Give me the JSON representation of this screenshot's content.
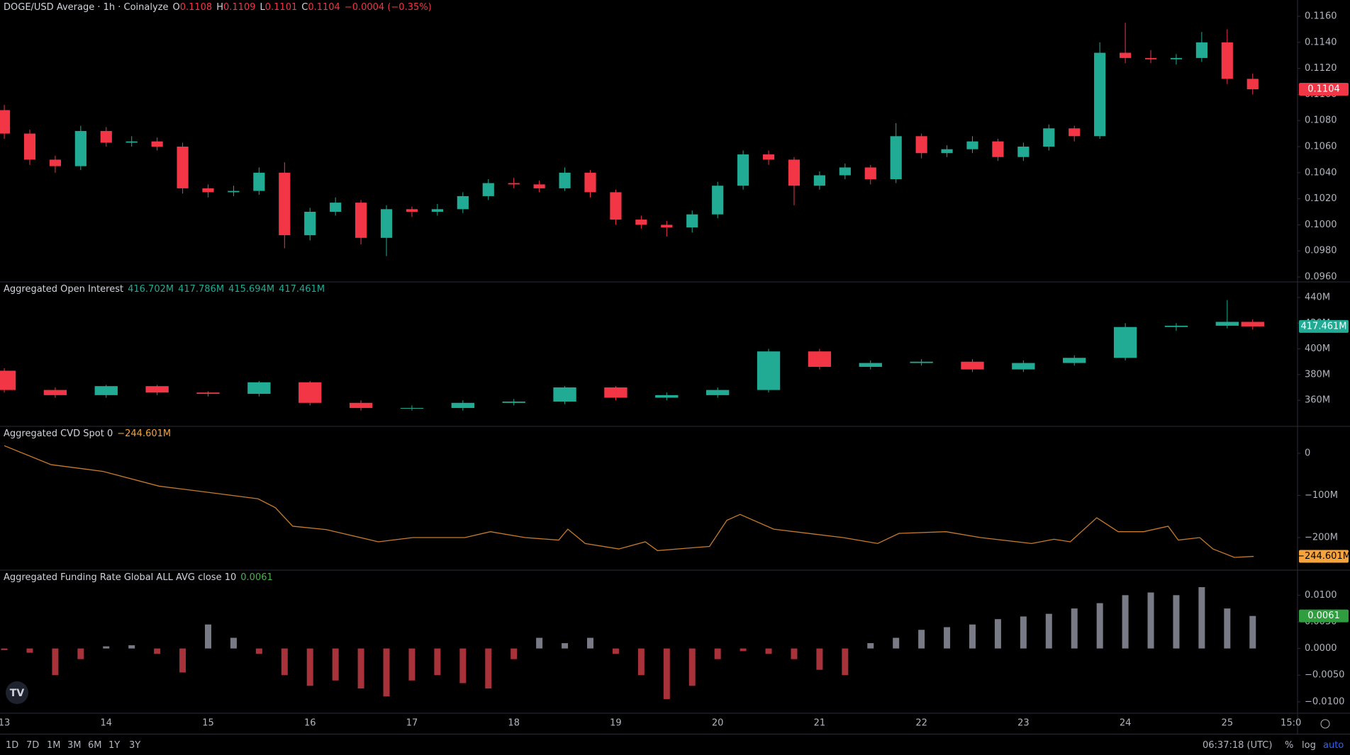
{
  "time_axis": {
    "xlim": [
      12.958,
      25.69
    ],
    "xticks": [
      {
        "value": 13,
        "label": "13"
      },
      {
        "value": 14,
        "label": "14"
      },
      {
        "value": 15,
        "label": "15"
      },
      {
        "value": 16,
        "label": "16"
      },
      {
        "value": 17,
        "label": "17"
      },
      {
        "value": 18,
        "label": "18"
      },
      {
        "value": 19,
        "label": "19"
      },
      {
        "value": 20,
        "label": "20"
      },
      {
        "value": 21,
        "label": "21"
      },
      {
        "value": 22,
        "label": "22"
      },
      {
        "value": 23,
        "label": "23"
      },
      {
        "value": 24,
        "label": "24"
      },
      {
        "value": 25,
        "label": "25"
      },
      {
        "value": 25.625,
        "label": "15:0"
      }
    ]
  },
  "chart_data": [
    {
      "type": "candlestick",
      "title": "DOGE/USD Average · 1h · Coinalyze",
      "legend": [
        {
          "key": "O",
          "value": "0.1108"
        },
        {
          "key": "H",
          "value": "0.1109"
        },
        {
          "key": "L",
          "value": "0.1101"
        },
        {
          "key": "C",
          "value": "0.1104"
        }
      ],
      "change": "−0.0004 (−0.35%)",
      "up_color": "#22ab94",
      "down_color": "#f23645",
      "badge_color": "#f23645",
      "grid": false,
      "x": [
        13.0,
        13.25,
        13.5,
        13.75,
        14.0,
        14.25,
        14.5,
        14.75,
        15.0,
        15.25,
        15.5,
        15.75,
        16.0,
        16.25,
        16.5,
        16.75,
        17.0,
        17.25,
        17.5,
        17.75,
        18.0,
        18.25,
        18.5,
        18.75,
        19.0,
        19.25,
        19.5,
        19.75,
        20.0,
        20.25,
        20.5,
        20.75,
        21.0,
        21.25,
        21.5,
        21.75,
        22.0,
        22.25,
        22.5,
        22.75,
        23.0,
        23.25,
        23.5,
        23.75,
        24.0,
        24.25,
        24.5,
        24.75,
        25.0,
        25.25
      ],
      "open": [
        0.1088,
        0.107,
        0.105,
        0.1045,
        0.1072,
        0.1063,
        0.1064,
        0.106,
        0.1028,
        0.1025,
        0.1026,
        0.104,
        0.0992,
        0.101,
        0.1017,
        0.099,
        0.1012,
        0.101,
        0.1012,
        0.1022,
        0.1032,
        0.1031,
        0.1028,
        0.104,
        0.1025,
        0.1004,
        0.1,
        0.0998,
        0.1008,
        0.103,
        0.1054,
        0.105,
        0.103,
        0.1038,
        0.1044,
        0.1035,
        0.1068,
        0.1055,
        0.1058,
        0.1064,
        0.1052,
        0.106,
        0.1074,
        0.1068,
        0.1132,
        0.1128,
        0.1127,
        0.1128,
        0.114,
        0.1112
      ],
      "high": [
        0.1092,
        0.1073,
        0.1053,
        0.1076,
        0.1075,
        0.1068,
        0.1067,
        0.1063,
        0.1031,
        0.103,
        0.1044,
        0.1048,
        0.1013,
        0.1021,
        0.1019,
        0.1015,
        0.1014,
        0.1016,
        0.1025,
        0.1035,
        0.1036,
        0.1034,
        0.1044,
        0.1042,
        0.1027,
        0.1007,
        0.1003,
        0.1011,
        0.1033,
        0.1057,
        0.1057,
        0.1052,
        0.1041,
        0.1047,
        0.1046,
        0.1078,
        0.107,
        0.1061,
        0.1068,
        0.1066,
        0.1063,
        0.1077,
        0.1076,
        0.114,
        0.1155,
        0.1134,
        0.1131,
        0.1148,
        0.115,
        0.1116
      ],
      "low": [
        0.1066,
        0.1046,
        0.104,
        0.1042,
        0.106,
        0.106,
        0.1057,
        0.1024,
        0.1021,
        0.1022,
        0.1023,
        0.0982,
        0.0988,
        0.1007,
        0.0985,
        0.0976,
        0.1006,
        0.1007,
        0.1009,
        0.1019,
        0.1028,
        0.1025,
        0.1026,
        0.1021,
        0.1,
        0.0997,
        0.0991,
        0.0994,
        0.1005,
        0.1027,
        0.1046,
        0.1015,
        0.1027,
        0.1035,
        0.1031,
        0.1032,
        0.1051,
        0.1052,
        0.1055,
        0.1049,
        0.1049,
        0.1057,
        0.1064,
        0.1066,
        0.1124,
        0.1124,
        0.1123,
        0.1125,
        0.1108,
        0.11
      ],
      "close": [
        0.107,
        0.105,
        0.1045,
        0.1072,
        0.1063,
        0.1064,
        0.106,
        0.1028,
        0.1025,
        0.1026,
        0.104,
        0.0992,
        0.101,
        0.1017,
        0.099,
        0.1012,
        0.101,
        0.1012,
        0.1022,
        0.1032,
        0.1031,
        0.1028,
        0.104,
        0.1025,
        0.1004,
        0.1,
        0.0998,
        0.1008,
        0.103,
        0.1054,
        0.105,
        0.103,
        0.1038,
        0.1044,
        0.1035,
        0.1068,
        0.1055,
        0.1058,
        0.1064,
        0.1052,
        0.106,
        0.1074,
        0.1068,
        0.1132,
        0.1128,
        0.1127,
        0.1128,
        0.114,
        0.1112,
        0.1104
      ],
      "ylim": [
        0.09562,
        0.11725
      ],
      "yticks": [
        {
          "value": 0.096,
          "label": "0.0960"
        },
        {
          "value": 0.098,
          "label": "0.0980"
        },
        {
          "value": 0.1,
          "label": "0.1000"
        },
        {
          "value": 0.102,
          "label": "0.1020"
        },
        {
          "value": 0.104,
          "label": "0.1040"
        },
        {
          "value": 0.106,
          "label": "0.1060"
        },
        {
          "value": 0.108,
          "label": "0.1080"
        },
        {
          "value": 0.11,
          "label": "0.1100"
        },
        {
          "value": 0.112,
          "label": "0.1120"
        },
        {
          "value": 0.114,
          "label": "0.1140"
        },
        {
          "value": 0.116,
          "label": "0.1160"
        }
      ]
    },
    {
      "type": "candlestick",
      "title": "Aggregated Open Interest",
      "legend_values": [
        "416.702M",
        "417.786M",
        "415.694M",
        "417.461M"
      ],
      "up_color": "#22ab94",
      "down_color": "#f23645",
      "badge_color": "#22ab94",
      "grid": false,
      "x": [
        13.0,
        13.5,
        14.0,
        14.5,
        15.0,
        15.5,
        16.0,
        16.5,
        17.0,
        17.5,
        18.0,
        18.5,
        19.0,
        19.5,
        20.0,
        20.5,
        21.0,
        21.5,
        22.0,
        22.5,
        23.0,
        23.5,
        24.0,
        24.5,
        25.0,
        25.25
      ],
      "open": [
        383,
        368,
        364,
        371,
        366,
        365,
        374,
        358,
        354,
        354,
        358,
        359,
        370,
        362,
        364,
        368,
        398,
        386,
        389,
        390,
        384,
        389,
        393,
        417,
        418,
        421
      ],
      "high": [
        385,
        370,
        372,
        372,
        367,
        375,
        375,
        360,
        356,
        360,
        361,
        371,
        371,
        366,
        370,
        400,
        400,
        391,
        392,
        392,
        391,
        395,
        420,
        420,
        438,
        423
      ],
      "low": [
        366,
        362,
        362,
        364,
        363,
        363,
        356,
        352,
        352,
        352,
        356,
        357,
        360,
        360,
        362,
        366,
        384,
        384,
        387,
        382,
        382,
        387,
        391,
        414,
        416,
        415
      ],
      "close": [
        368,
        364,
        371,
        366,
        365,
        374,
        358,
        354,
        354,
        358,
        359,
        370,
        362,
        364,
        368,
        398,
        386,
        389,
        390,
        384,
        389,
        393,
        417,
        418,
        421,
        417.461
      ],
      "ylim": [
        339.7,
        452.1
      ],
      "yticks": [
        {
          "value": 360,
          "label": "360M"
        },
        {
          "value": 380,
          "label": "380M"
        },
        {
          "value": 400,
          "label": "400M"
        },
        {
          "value": 420,
          "label": "420M"
        },
        {
          "value": 440,
          "label": "440M"
        }
      ]
    },
    {
      "type": "line",
      "title": "Aggregated CVD Spot 0",
      "legend_value": "−244.601M",
      "color": "#c87b2a",
      "badge_color": "#f5a33a",
      "grid": false,
      "x": [
        13.0,
        13.46,
        13.97,
        14.52,
        14.98,
        15.49,
        15.66,
        15.83,
        16.16,
        16.67,
        17.01,
        17.52,
        17.77,
        18.11,
        18.44,
        18.53,
        18.7,
        19.03,
        19.29,
        19.41,
        19.71,
        19.92,
        20.09,
        20.22,
        20.55,
        20.89,
        21.23,
        21.57,
        21.78,
        22.24,
        22.58,
        23.08,
        23.3,
        23.46,
        23.72,
        23.93,
        24.18,
        24.42,
        24.52,
        24.73,
        24.86,
        25.07,
        25.26
      ],
      "values": [
        18,
        -27,
        -43,
        -78,
        -92,
        -108,
        -129,
        -173,
        -181,
        -210,
        -200,
        -200,
        -186,
        -200,
        -206,
        -180,
        -214,
        -227,
        -210,
        -231,
        -225,
        -221,
        -159,
        -145,
        -180,
        -190,
        -200,
        -214,
        -190,
        -186,
        -200,
        -214,
        -204,
        -210,
        -153,
        -186,
        -186,
        -173,
        -206,
        -200,
        -227,
        -247,
        -244.601
      ],
      "ylim": [
        -277.3,
        63.9
      ],
      "yticks": [
        {
          "value": -200,
          "label": "−200M"
        },
        {
          "value": -100,
          "label": "−100M"
        },
        0
      ]
    },
    {
      "type": "bar",
      "title": "Aggregated Funding Rate Global ALL AVG close 10",
      "legend_value": "0.0061",
      "positive_color": "#787b86",
      "negative_color": "#a8323a",
      "badge_color": "#2e9e3e",
      "grid": false,
      "x": [
        13.0,
        13.25,
        13.5,
        13.75,
        14.0,
        14.25,
        14.5,
        14.75,
        15.0,
        15.25,
        15.5,
        15.75,
        16.0,
        16.25,
        16.5,
        16.75,
        17.0,
        17.25,
        17.5,
        17.75,
        18.0,
        18.25,
        18.5,
        18.75,
        19.0,
        19.25,
        19.5,
        19.75,
        20.0,
        20.25,
        20.5,
        20.75,
        21.0,
        21.25,
        21.5,
        21.75,
        22.0,
        22.25,
        22.5,
        22.75,
        23.0,
        23.25,
        23.5,
        23.75,
        24.0,
        24.25,
        24.5,
        24.75,
        25.0,
        25.25
      ],
      "values": [
        -0.0003,
        -0.0008,
        -0.005,
        -0.002,
        0.0004,
        0.0006,
        -0.001,
        -0.0045,
        0.0045,
        0.002,
        -0.001,
        -0.005,
        -0.007,
        -0.006,
        -0.0075,
        -0.009,
        -0.006,
        -0.005,
        -0.0065,
        -0.0075,
        -0.002,
        0.002,
        0.001,
        0.002,
        -0.001,
        -0.005,
        -0.0095,
        -0.007,
        -0.002,
        -0.0005,
        -0.001,
        -0.002,
        -0.004,
        -0.005,
        0.001,
        0.002,
        0.0035,
        0.004,
        0.0045,
        0.0055,
        0.006,
        0.0065,
        0.0075,
        0.0085,
        0.01,
        0.0105,
        0.01,
        0.0115,
        0.0075,
        0.0061
      ],
      "ylim": [
        -0.01214,
        0.01469
      ],
      "yticks": [
        {
          "value": -0.01,
          "label": "−0.0100"
        },
        {
          "value": -0.005,
          "label": "−0.0050"
        },
        {
          "value": 0,
          "label": "0.0000"
        },
        {
          "value": 0.005,
          "label": "0.0050"
        },
        {
          "value": 0.01,
          "label": "0.0100"
        }
      ]
    }
  ],
  "toolbar": {
    "ranges": [
      "1D",
      "7D",
      "1M",
      "3M",
      "6M",
      "1Y",
      "3Y"
    ],
    "clock": "06:37:18 (UTC)",
    "percent": "%",
    "log": "log",
    "auto": "auto"
  }
}
